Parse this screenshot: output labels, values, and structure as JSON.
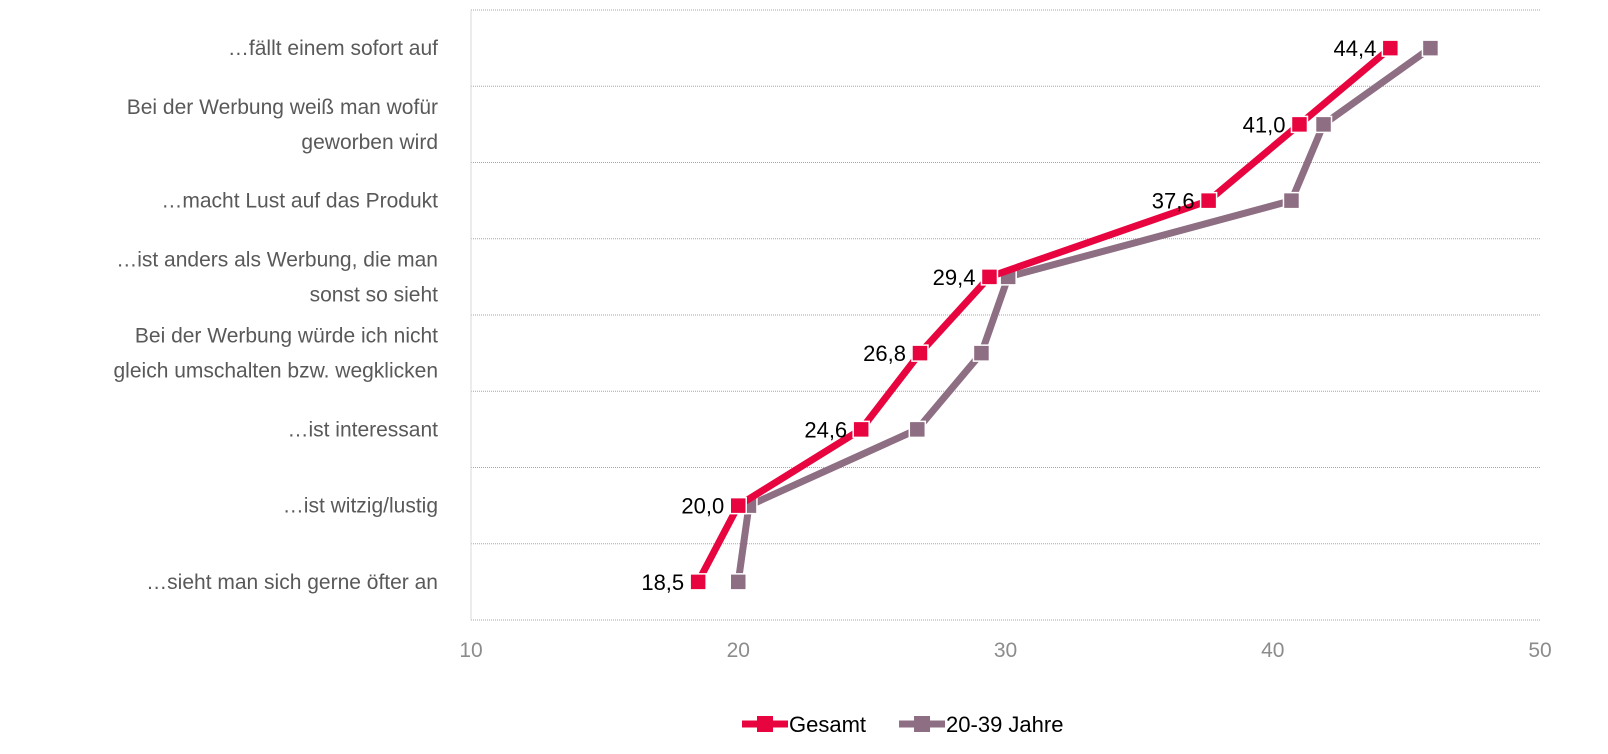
{
  "chart_data": {
    "type": "line",
    "orientation": "horizontal",
    "categories": [
      "…fällt einem sofort auf",
      "Bei der Werbung weiß man wofür geworben wird",
      "…macht Lust auf das Produkt",
      "…ist anders als Werbung, die man sonst so sieht",
      "Bei der Werbung würde ich nicht gleich umschalten bzw. wegklicken",
      "…ist interessant",
      "…ist witzig/lustig",
      "…sieht man sich gerne öfter an"
    ],
    "category_lines": [
      [
        "…fällt einem sofort auf"
      ],
      [
        "Bei der Werbung weiß man wofür",
        "geworben wird"
      ],
      [
        "…macht Lust auf das Produkt"
      ],
      [
        "…ist anders als Werbung, die man",
        "sonst so sieht"
      ],
      [
        "Bei der Werbung würde ich nicht",
        "gleich umschalten bzw. wegklicken"
      ],
      [
        "…ist interessant"
      ],
      [
        "…ist witzig/lustig"
      ],
      [
        "…sieht man sich gerne öfter an"
      ]
    ],
    "series": [
      {
        "name": "Gesamt",
        "color": "#e8053f",
        "values": [
          44.4,
          41.0,
          37.6,
          29.4,
          26.8,
          24.6,
          20.0,
          18.5
        ],
        "data_labels": [
          "44,4",
          "41,0",
          "37,6",
          "29,4",
          "26,8",
          "24,6",
          "20,0",
          "18,5"
        ]
      },
      {
        "name": "20-39 Jahre",
        "color": "#8e6e82",
        "values": [
          45.9,
          41.9,
          40.7,
          30.1,
          29.1,
          26.7,
          20.4,
          20.0
        ]
      }
    ],
    "xlim": [
      10,
      50
    ],
    "xticks": [
      "10",
      "20",
      "30",
      "40",
      "50"
    ],
    "xlabel": "",
    "ylabel": "",
    "title": "",
    "grid": "horizontal dotted",
    "legend_position": "bottom-center"
  }
}
